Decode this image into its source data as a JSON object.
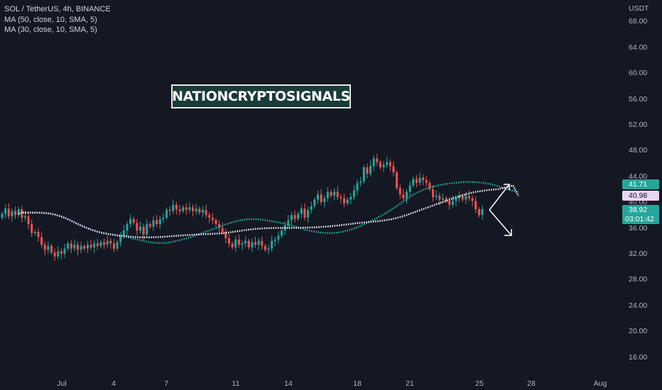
{
  "legend": {
    "symbol_line": "SOL / TetherUS, 4h, BINANCE",
    "ma1": "MA (50, close, 10, SMA, 5)",
    "ma2": "MA (30, close, 10, SMA, 5)"
  },
  "watermark": "NATIONCRYPTOSIGNALS",
  "price_axis": {
    "currency": "USDT",
    "ticks": [
      "68.00",
      "64.00",
      "60.00",
      "56.00",
      "52.00",
      "48.00",
      "44.00",
      "40.00",
      "36.00",
      "32.00",
      "28.00",
      "24.00",
      "20.00",
      "16.00"
    ],
    "tick_values": [
      68,
      64,
      60,
      56,
      52,
      48,
      44,
      40,
      36,
      32,
      28,
      24,
      20,
      16
    ],
    "labels": [
      {
        "text": "41.71",
        "value": 41.71,
        "bg": "#26a69a",
        "fg": "#ffffff"
      },
      {
        "text": "40.98",
        "value": 40.98,
        "bg": "#e8d6f0",
        "fg": "#131722"
      },
      {
        "text": "38.92",
        "value": 38.92,
        "bg": "#26a69a",
        "fg": "#ffffff"
      },
      {
        "text": "03:01:42",
        "value": 37.55,
        "bg": "#26a69a",
        "fg": "#ffffff"
      }
    ]
  },
  "time_axis": {
    "labels": [
      "Jul",
      "4",
      "7",
      "11",
      "14",
      "18",
      "21",
      "25",
      "28",
      "Aug"
    ]
  },
  "colors": {
    "bull": "#26a69a",
    "bear": "#ef5350",
    "ma_slow": "#f0e6f5",
    "ma_fast": "#26a69a",
    "background": "#141823"
  },
  "chart_data": {
    "type": "candlestick",
    "x_labels": [
      "Jul",
      "4",
      "7",
      "11",
      "14",
      "18",
      "21",
      "25",
      "28",
      "Aug"
    ],
    "ylim": [
      14,
      71
    ],
    "closes": [
      38.2,
      39.0,
      37.8,
      38.6,
      38.0,
      38.9,
      37.6,
      37.8,
      36.6,
      35.2,
      35.4,
      34.6,
      33.4,
      32.6,
      33.2,
      32.2,
      31.6,
      32.4,
      32.0,
      32.8,
      33.6,
      32.8,
      33.4,
      32.6,
      33.2,
      32.8,
      33.4,
      33.0,
      33.6,
      33.2,
      33.8,
      33.4,
      34.0,
      33.6,
      32.8,
      33.8,
      34.8,
      35.6,
      36.6,
      37.4,
      36.8,
      35.6,
      36.2,
      35.0,
      36.6,
      36.2,
      37.2,
      36.6,
      37.4,
      37.6,
      38.8,
      38.6,
      39.6,
      38.9,
      38.6,
      39.2,
      38.8,
      39.2,
      38.6,
      39.0,
      38.4,
      38.8,
      38.0,
      37.6,
      37.2,
      36.6,
      36.0,
      35.4,
      34.4,
      33.6,
      33.0,
      34.2,
      33.4,
      33.6,
      34.0,
      33.0,
      33.8,
      33.4,
      34.0,
      33.2,
      32.6,
      32.8,
      34.0,
      34.2,
      34.8,
      35.6,
      36.4,
      37.2,
      38.0,
      37.4,
      38.2,
      39.0,
      37.6,
      38.8,
      39.4,
      40.4,
      41.2,
      40.0,
      40.6,
      41.6,
      41.0,
      41.6,
      40.8,
      40.6,
      39.8,
      40.4,
      40.8,
      41.8,
      43.0,
      43.2,
      45.4,
      44.4,
      45.6,
      46.8,
      46.2,
      45.4,
      45.8,
      46.2,
      45.6,
      44.6,
      42.2,
      41.2,
      40.6,
      41.6,
      42.6,
      43.6,
      43.0,
      43.8,
      43.4,
      43.0,
      42.0,
      40.8,
      41.0,
      40.4,
      40.6,
      40.2,
      39.6,
      40.2,
      40.6,
      41.0,
      40.4,
      41.0,
      40.6,
      40.2,
      38.9,
      38.0,
      38.92
    ]
  }
}
